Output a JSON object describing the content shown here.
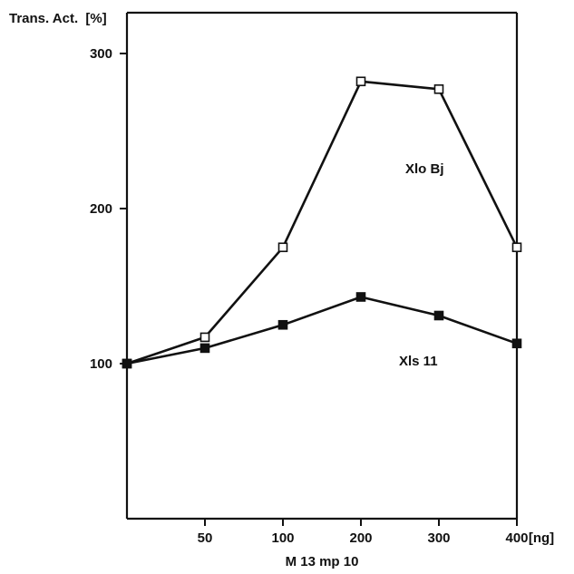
{
  "chart_data": {
    "type": "line",
    "ylabel": "Trans. Act.",
    "yunit": "%",
    "xlabel": "M 13 mp 10",
    "xunit": "ng",
    "ylim": [
      0,
      350
    ],
    "y_ticks": [
      100,
      200,
      300
    ],
    "x_ticks": [
      {
        "value": 50,
        "label": "50"
      },
      {
        "value": 100,
        "label": "100"
      },
      {
        "value": 200,
        "label": "200"
      },
      {
        "value": 300,
        "label": "300"
      },
      {
        "value": 400,
        "label": "400"
      }
    ],
    "x": [
      0,
      50,
      100,
      200,
      300,
      400
    ],
    "series": [
      {
        "name": "Xlo Bj",
        "marker": "open-square",
        "values": [
          100,
          117,
          175,
          282,
          277,
          175
        ]
      },
      {
        "name": "Xls 11",
        "marker": "filled-square",
        "values": [
          100,
          110,
          125,
          143,
          131,
          113
        ]
      }
    ],
    "grid": false,
    "legend": "inline labels"
  }
}
